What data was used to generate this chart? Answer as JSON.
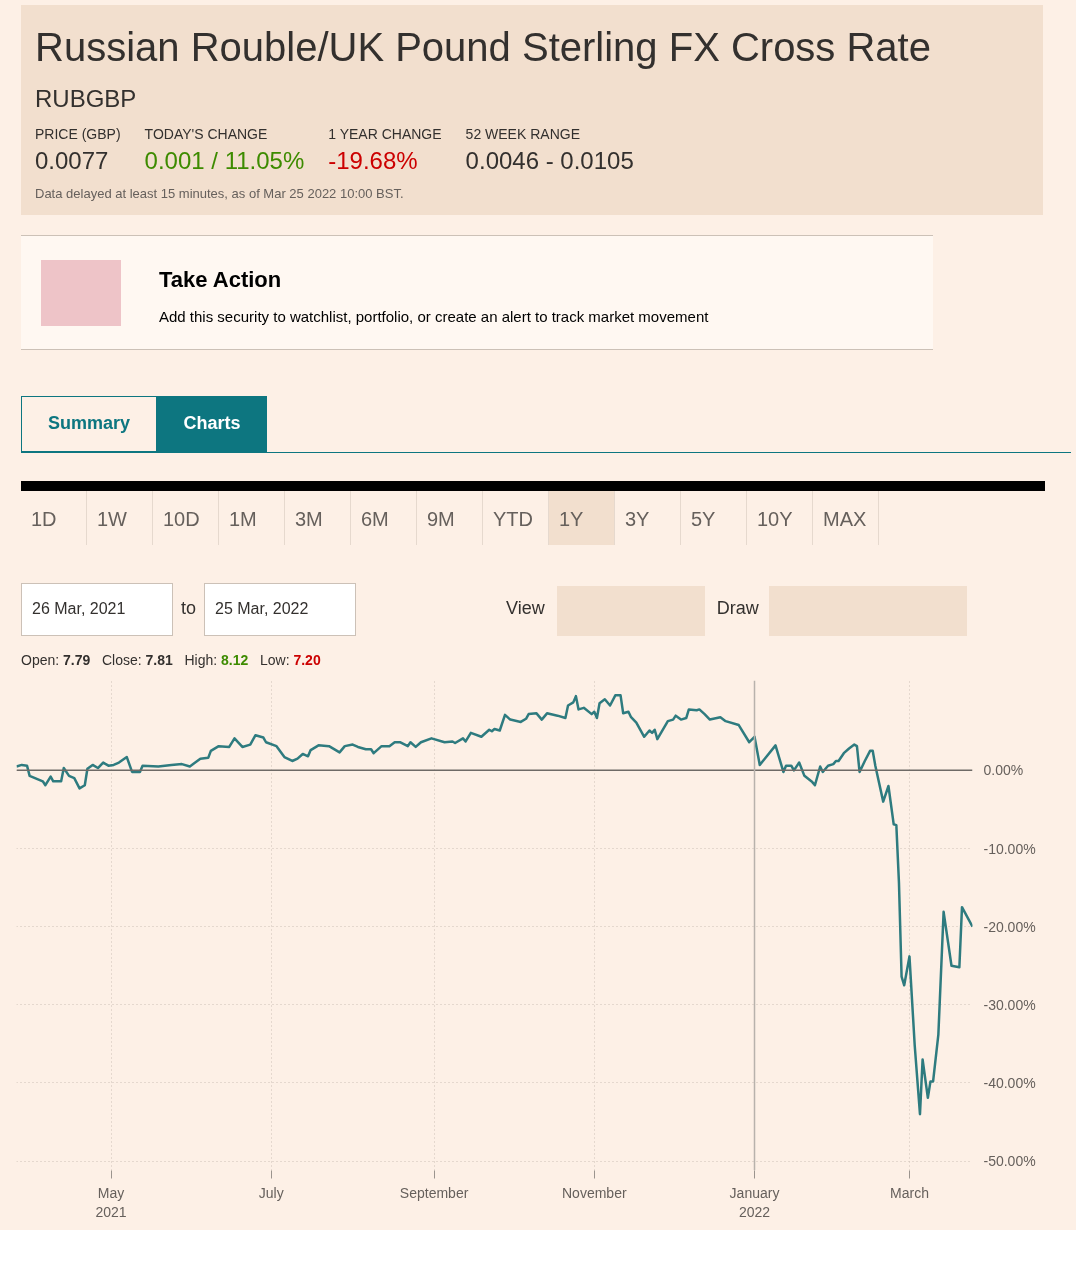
{
  "chart_data": {
    "type": "line",
    "title": "Russian Rouble/UK Pound Sterling FX Cross Rate",
    "subtitle": "RUBGBP",
    "annotations": [
      "PRICE (GBP)",
      "0.0077",
      "TODAY'S CHANGE",
      "0.001 / 11.05%",
      "1 YEAR CHANGE",
      "-19.68%",
      "52 WEEK RANGE",
      "0.0046 - 0.0105",
      "Data delayed at least 15 minutes, as of Mar 25 2022 10:00 BST.",
      "Take Action",
      "Add this security to watchlist, portfolio, or create an alert to track market movement",
      "Summary",
      "Charts",
      "1D",
      "1W",
      "10D",
      "1M",
      "3M",
      "6M",
      "9M",
      "YTD",
      "1Y",
      "3Y",
      "5Y",
      "10Y",
      "MAX",
      "26 Mar, 2021",
      "to",
      "25 Mar, 2022",
      "View",
      "Draw",
      "Open:",
      "7.79",
      "Close:",
      "7.81",
      "High:",
      "8.12",
      "Low:",
      "7.20"
    ],
    "x": [
      "2021-03-26",
      "2021-03-28",
      "2021-03-30",
      "2021-03-31",
      "2021-04-05",
      "2021-04-06",
      "2021-04-08",
      "2021-04-09",
      "2021-04-12",
      "2021-04-13",
      "2021-04-15",
      "2021-04-17",
      "2021-04-19",
      "2021-04-21",
      "2021-04-22",
      "2021-04-24",
      "2021-04-26",
      "2021-04-28",
      "2021-04-30",
      "2021-05-02",
      "2021-05-04",
      "2021-05-07",
      "2021-05-09",
      "2021-05-12",
      "2021-05-13",
      "2021-05-19",
      "2021-05-24",
      "2021-05-28",
      "2021-05-31",
      "2021-06-04",
      "2021-06-07",
      "2021-06-08",
      "2021-06-11",
      "2021-06-15",
      "2021-06-17",
      "2021-06-20",
      "2021-06-23",
      "2021-06-25",
      "2021-06-28",
      "2021-06-29",
      "2021-07-03",
      "2021-07-06",
      "2021-07-09",
      "2021-07-11",
      "2021-07-13",
      "2021-07-15",
      "2021-07-16",
      "2021-07-19",
      "2021-07-23",
      "2021-07-27",
      "2021-07-29",
      "2021-08-01",
      "2021-08-03",
      "2021-08-06",
      "2021-08-08",
      "2021-08-09",
      "2021-08-12",
      "2021-08-15",
      "2021-08-17",
      "2021-08-19",
      "2021-08-22",
      "2021-08-23",
      "2021-08-25",
      "2021-08-27",
      "2021-08-31",
      "2021-09-05",
      "2021-09-08",
      "2021-09-09",
      "2021-09-12",
      "2021-09-13",
      "2021-09-15",
      "2021-09-19",
      "2021-09-22",
      "2021-09-23",
      "2021-09-24",
      "2021-09-26",
      "2021-09-28",
      "2021-09-30",
      "2021-10-04",
      "2021-10-06",
      "2021-10-07",
      "2021-10-10",
      "2021-10-12",
      "2021-10-14",
      "2021-10-18",
      "2021-10-21",
      "2021-10-22",
      "2021-10-24",
      "2021-10-25",
      "2021-10-26",
      "2021-10-28",
      "2021-10-31",
      "2021-11-01",
      "2021-11-02",
      "2021-11-03",
      "2021-11-05",
      "2021-11-07",
      "2021-11-09",
      "2021-11-11",
      "2021-11-12",
      "2021-11-14",
      "2021-11-15",
      "2021-11-17",
      "2021-11-20",
      "2021-11-22",
      "2021-11-23",
      "2021-11-24",
      "2021-11-25",
      "2021-11-29",
      "2021-12-01",
      "2021-12-02",
      "2021-12-04",
      "2021-12-06",
      "2021-12-07",
      "2021-12-10",
      "2021-12-11",
      "2021-12-13",
      "2021-12-15",
      "2021-12-19",
      "2021-12-21",
      "2021-12-26",
      "2021-12-30",
      "2022-01-01",
      "2022-01-03",
      "2022-01-09",
      "2022-01-12",
      "2022-01-13",
      "2022-01-15",
      "2022-01-16",
      "2022-01-18",
      "2022-01-20",
      "2022-01-23",
      "2022-01-24",
      "2022-01-26",
      "2022-01-27",
      "2022-01-29",
      "2022-01-31",
      "2022-02-01",
      "2022-02-02",
      "2022-02-04",
      "2022-02-06",
      "2022-02-08",
      "2022-02-09",
      "2022-02-10",
      "2022-02-12",
      "2022-02-14",
      "2022-02-15",
      "2022-02-16",
      "2022-02-19",
      "2022-02-21",
      "2022-02-23",
      "2022-02-24",
      "2022-02-25",
      "2022-02-26",
      "2022-02-27",
      "2022-03-01",
      "2022-03-03",
      "2022-03-05",
      "2022-03-06",
      "2022-03-08",
      "2022-03-09",
      "2022-03-10",
      "2022-03-12",
      "2022-03-14",
      "2022-03-17",
      "2022-03-20",
      "2022-03-21",
      "2022-03-25"
    ],
    "series": [
      {
        "color": "#2e7b7f",
        "values": [
          0.5,
          0.7,
          0.6,
          -0.7,
          -1.4,
          -1.9,
          -0.8,
          -1.4,
          -1.4,
          0.3,
          -0.7,
          -1.0,
          -2.3,
          -1.9,
          0.2,
          0.7,
          0.3,
          1.0,
          0.6,
          0.7,
          1.0,
          1.7,
          -0.2,
          -0.2,
          0.6,
          0.5,
          0.7,
          0.8,
          0.5,
          1.5,
          1.6,
          2.5,
          3.1,
          3.0,
          4.1,
          3.0,
          3.3,
          4.5,
          4.2,
          3.6,
          3.1,
          1.7,
          1.2,
          1.5,
          2.1,
          1.8,
          2.6,
          3.2,
          3.1,
          2.3,
          3.1,
          3.3,
          3.0,
          2.7,
          2.7,
          2.2,
          3.1,
          3.1,
          3.6,
          3.6,
          3.1,
          3.6,
          3.0,
          3.6,
          4.1,
          3.6,
          3.7,
          3.5,
          4.1,
          3.7,
          4.8,
          4.3,
          5.2,
          5.0,
          5.3,
          5.1,
          7.1,
          6.5,
          6.2,
          6.6,
          7.2,
          7.3,
          6.5,
          7.3,
          7.0,
          6.7,
          8.3,
          8.7,
          9.5,
          7.8,
          8.0,
          7.2,
          7.5,
          6.7,
          8.6,
          9.1,
          8.3,
          9.6,
          9.6,
          7.3,
          7.5,
          6.8,
          6.1,
          4.3,
          5.1,
          4.8,
          5.2,
          4.0,
          6.3,
          6.5,
          7.0,
          6.5,
          6.7,
          7.8,
          7.7,
          7.8,
          7.2,
          6.5,
          6.8,
          6.3,
          5.8,
          3.6,
          4.3,
          0.7,
          3.2,
          -0.2,
          0.6,
          0.6,
          0.0,
          1.0,
          -0.7,
          -1.5,
          -1.9,
          0.5,
          -0.2,
          0.6,
          0.8,
          1.2,
          1.2,
          2.2,
          2.8,
          3.3,
          3.1,
          -0.2,
          1.2,
          2.5,
          2.5,
          0.6,
          -4.0,
          -2.0,
          -6.9,
          -7.0,
          -14.4,
          -26.4,
          -27.5,
          -23.8,
          -35.2,
          -44.0,
          -37.0,
          -41.9,
          -39.8,
          -39.8,
          -33.8,
          -18.1,
          -25.0,
          -25.2,
          -17.5,
          -20.0
        ]
      }
    ],
    "xlim": [
      "2021-03-26",
      "2022-03-25"
    ],
    "xticks": [
      {
        "value": "2021-05-01",
        "label": "May\n2021"
      },
      {
        "value": "2021-07-01",
        "label": "July"
      },
      {
        "value": "2021-09-01",
        "label": "September"
      },
      {
        "value": "2021-11-01",
        "label": "November"
      },
      {
        "value": "2022-01-01",
        "label": "January\n2022"
      },
      {
        "value": "2022-03-01",
        "label": "March"
      }
    ],
    "ylim": [
      -51.2,
      11.5
    ],
    "yticks": [
      {
        "value": 0,
        "label": "0.00%"
      },
      {
        "value": -10,
        "label": "-10.00%"
      },
      {
        "value": -20,
        "label": "-20.00%"
      },
      {
        "value": -30,
        "label": "-30.00%"
      },
      {
        "value": -40,
        "label": "-40.00%"
      },
      {
        "value": -50,
        "label": "-50.00%"
      }
    ],
    "grid": true,
    "ref_lines": [
      {
        "axis": "y",
        "value": 0,
        "color": "#6e6a66"
      },
      {
        "axis": "x",
        "value": "2022-01-01",
        "color": "#b8b2ac"
      }
    ]
  }
}
